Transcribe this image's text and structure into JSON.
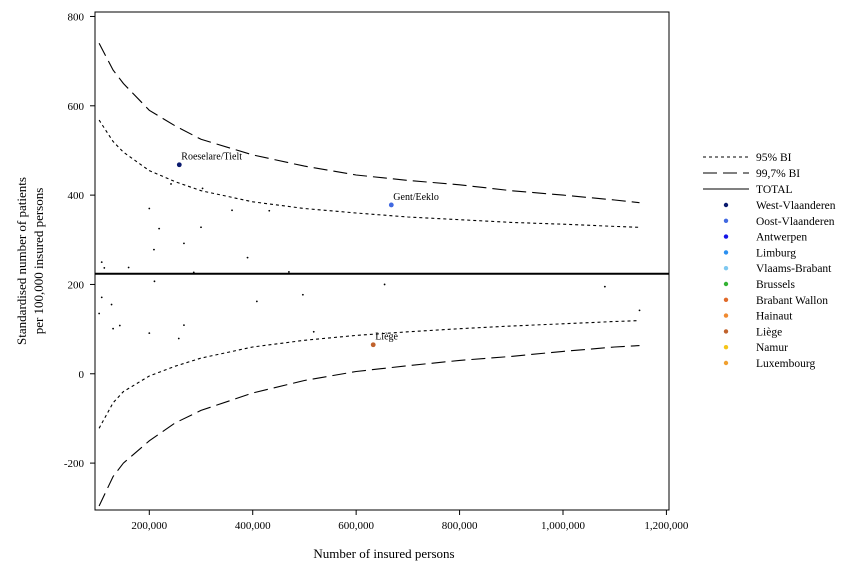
{
  "chart_data": {
    "type": "scatter",
    "xlabel": "Number of insured persons",
    "ylabel_lines": [
      "Standardised number of patients",
      "per 100,000 insured persons"
    ],
    "xlim": [
      95000,
      1205000
    ],
    "ylim": [
      -305,
      810
    ],
    "x_ticks": [
      200000,
      400000,
      600000,
      800000,
      1000000,
      1200000
    ],
    "x_tick_labels": [
      "200,000",
      "400,000",
      "600,000",
      "800,000",
      "1,000,000",
      "1,200,000"
    ],
    "y_ticks": [
      800,
      600,
      400,
      200,
      0,
      -200
    ],
    "y_tick_labels": [
      "800",
      "600",
      "400",
      "200",
      "0",
      "-200"
    ],
    "total": 224,
    "curves": [
      {
        "name": "95% BI",
        "style": "dotted",
        "points_upper": [
          [
            103000,
            568
          ],
          [
            130000,
            520
          ],
          [
            150000,
            496
          ],
          [
            200000,
            455
          ],
          [
            250000,
            430
          ],
          [
            300000,
            410
          ],
          [
            400000,
            385
          ],
          [
            500000,
            370
          ],
          [
            600000,
            360
          ],
          [
            700000,
            351
          ],
          [
            800000,
            345
          ],
          [
            900000,
            339
          ],
          [
            1000000,
            335
          ],
          [
            1100000,
            330
          ],
          [
            1148000,
            328
          ]
        ],
        "points_lower": [
          [
            103000,
            -122
          ],
          [
            130000,
            -65
          ],
          [
            150000,
            -40
          ],
          [
            200000,
            -5
          ],
          [
            250000,
            17
          ],
          [
            300000,
            35
          ],
          [
            400000,
            60
          ],
          [
            500000,
            75
          ],
          [
            600000,
            86
          ],
          [
            700000,
            94
          ],
          [
            800000,
            101
          ],
          [
            900000,
            107
          ],
          [
            1000000,
            112
          ],
          [
            1100000,
            117
          ],
          [
            1148000,
            119
          ]
        ]
      },
      {
        "name": "99,7% BI",
        "style": "dashed",
        "points_upper": [
          [
            103000,
            740
          ],
          [
            130000,
            680
          ],
          [
            150000,
            650
          ],
          [
            200000,
            590
          ],
          [
            250000,
            555
          ],
          [
            300000,
            525
          ],
          [
            400000,
            490
          ],
          [
            500000,
            465
          ],
          [
            600000,
            445
          ],
          [
            700000,
            433
          ],
          [
            800000,
            423
          ],
          [
            900000,
            410
          ],
          [
            1000000,
            400
          ],
          [
            1100000,
            389
          ],
          [
            1148000,
            383
          ]
        ],
        "points_lower": [
          [
            103000,
            -296
          ],
          [
            130000,
            -230
          ],
          [
            150000,
            -200
          ],
          [
            200000,
            -150
          ],
          [
            250000,
            -110
          ],
          [
            300000,
            -82
          ],
          [
            400000,
            -43
          ],
          [
            500000,
            -15
          ],
          [
            600000,
            5
          ],
          [
            700000,
            18
          ],
          [
            800000,
            30
          ],
          [
            900000,
            39
          ],
          [
            1000000,
            50
          ],
          [
            1100000,
            60
          ],
          [
            1148000,
            63
          ]
        ]
      }
    ],
    "points": [
      {
        "x": 258000,
        "y": 468,
        "region": "West-Vlaanderen",
        "label": "Roeselare/Tielt"
      },
      {
        "x": 668000,
        "y": 378,
        "region": "Oost-Vlaanderen",
        "label": "Gent/Eeklo"
      },
      {
        "x": 633000,
        "y": 65,
        "region": "Liège",
        "label": "Liège"
      },
      {
        "x": 242000,
        "y": 425
      },
      {
        "x": 303000,
        "y": 415
      },
      {
        "x": 200000,
        "y": 370
      },
      {
        "x": 360000,
        "y": 366
      },
      {
        "x": 432000,
        "y": 365
      },
      {
        "x": 300000,
        "y": 328
      },
      {
        "x": 219000,
        "y": 325
      },
      {
        "x": 267000,
        "y": 292
      },
      {
        "x": 209000,
        "y": 278
      },
      {
        "x": 390000,
        "y": 260
      },
      {
        "x": 108000,
        "y": 250
      },
      {
        "x": 113000,
        "y": 237
      },
      {
        "x": 160000,
        "y": 238
      },
      {
        "x": 286000,
        "y": 227
      },
      {
        "x": 470000,
        "y": 228
      },
      {
        "x": 210000,
        "y": 207
      },
      {
        "x": 655000,
        "y": 200
      },
      {
        "x": 1081000,
        "y": 195
      },
      {
        "x": 108000,
        "y": 171
      },
      {
        "x": 497000,
        "y": 177
      },
      {
        "x": 408000,
        "y": 162
      },
      {
        "x": 127000,
        "y": 155
      },
      {
        "x": 1148000,
        "y": 142
      },
      {
        "x": 103000,
        "y": 135
      },
      {
        "x": 143000,
        "y": 108
      },
      {
        "x": 267000,
        "y": 109
      },
      {
        "x": 130000,
        "y": 101
      },
      {
        "x": 200000,
        "y": 91
      },
      {
        "x": 518000,
        "y": 94
      },
      {
        "x": 257000,
        "y": 79
      }
    ],
    "legend": {
      "placement": "right",
      "lines": [
        {
          "label": "95% BI",
          "style": "dotted"
        },
        {
          "label": "99,7% BI",
          "style": "dashed"
        },
        {
          "label": "TOTAL",
          "style": "solid"
        }
      ],
      "regions": [
        {
          "label": "West-Vlaanderen",
          "color": "#0a1a6e"
        },
        {
          "label": "Oost-Vlaanderen",
          "color": "#4169e1"
        },
        {
          "label": "Antwerpen",
          "color": "#1414e6"
        },
        {
          "label": "Limburg",
          "color": "#2a8ff0"
        },
        {
          "label": "Vlaams-Brabant",
          "color": "#7ec8f0"
        },
        {
          "label": "Brussels",
          "color": "#33b233"
        },
        {
          "label": "Brabant Wallon",
          "color": "#e06a2a"
        },
        {
          "label": "Hainaut",
          "color": "#f08a30"
        },
        {
          "label": "Liège",
          "color": "#c0622c"
        },
        {
          "label": "Namur",
          "color": "#f5c518"
        },
        {
          "label": "Luxembourg",
          "color": "#f0a030"
        }
      ]
    }
  }
}
